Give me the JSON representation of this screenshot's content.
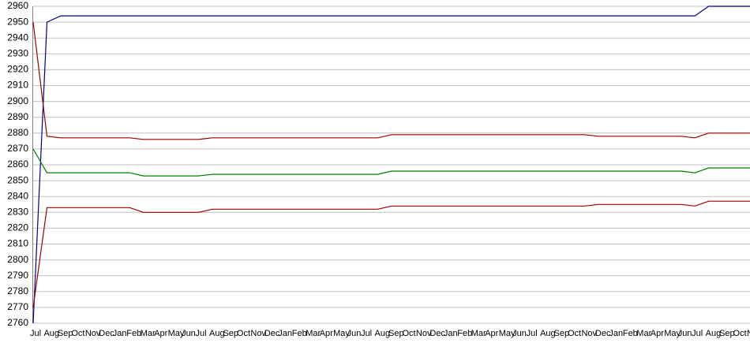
{
  "chart_data": {
    "type": "line",
    "categories": [
      "Jul",
      "Aug",
      "Sep",
      "Oct",
      "Nov",
      "Dec",
      "Jan",
      "Feb",
      "Mar",
      "Apr",
      "May",
      "Jun",
      "Jul",
      "Aug",
      "Sep",
      "Oct",
      "Nov",
      "Dec",
      "Jan",
      "Feb",
      "Mar",
      "Apr",
      "May",
      "Jun",
      "Jul",
      "Aug",
      "Sep",
      "Oct",
      "Nov",
      "Dec",
      "Jan",
      "Feb",
      "Mar",
      "Apr",
      "May",
      "Jun",
      "Jul",
      "Aug",
      "Sep",
      "Oct",
      "Nov",
      "Dec",
      "Jan",
      "Feb",
      "Mar",
      "Apr",
      "May",
      "Jun",
      "Jul",
      "Aug",
      "Sep",
      "Oct",
      "Nov"
    ],
    "series": [
      {
        "color": "#000080",
        "values": [
          2760,
          2950,
          2954,
          2954,
          2954,
          2954,
          2954,
          2954,
          2954,
          2954,
          2954,
          2954,
          2954,
          2954,
          2954,
          2954,
          2954,
          2954,
          2954,
          2954,
          2954,
          2954,
          2954,
          2954,
          2954,
          2954,
          2954,
          2954,
          2954,
          2954,
          2954,
          2954,
          2954,
          2954,
          2954,
          2954,
          2954,
          2954,
          2954,
          2954,
          2954,
          2954,
          2954,
          2954,
          2954,
          2954,
          2954,
          2954,
          2954,
          2960,
          2960,
          2960,
          2960
        ]
      },
      {
        "color": "#990000",
        "values": [
          2950,
          2878,
          2877,
          2877,
          2877,
          2877,
          2877,
          2877,
          2876,
          2876,
          2876,
          2876,
          2876,
          2877,
          2877,
          2877,
          2877,
          2877,
          2877,
          2877,
          2877,
          2877,
          2877,
          2877,
          2877,
          2877,
          2879,
          2879,
          2879,
          2879,
          2879,
          2879,
          2879,
          2879,
          2879,
          2879,
          2879,
          2879,
          2879,
          2879,
          2879,
          2878,
          2878,
          2878,
          2878,
          2878,
          2878,
          2878,
          2877,
          2880,
          2880,
          2880,
          2880
        ]
      },
      {
        "color": "#008000",
        "values": [
          2870,
          2855,
          2855,
          2855,
          2855,
          2855,
          2855,
          2855,
          2853,
          2853,
          2853,
          2853,
          2853,
          2854,
          2854,
          2854,
          2854,
          2854,
          2854,
          2854,
          2854,
          2854,
          2854,
          2854,
          2854,
          2854,
          2856,
          2856,
          2856,
          2856,
          2856,
          2856,
          2856,
          2856,
          2856,
          2856,
          2856,
          2856,
          2856,
          2856,
          2856,
          2856,
          2856,
          2856,
          2856,
          2856,
          2856,
          2856,
          2855,
          2858,
          2858,
          2858,
          2858
        ]
      },
      {
        "color": "#990000",
        "values": [
          2770,
          2833,
          2833,
          2833,
          2833,
          2833,
          2833,
          2833,
          2830,
          2830,
          2830,
          2830,
          2830,
          2832,
          2832,
          2832,
          2832,
          2832,
          2832,
          2832,
          2832,
          2832,
          2832,
          2832,
          2832,
          2832,
          2834,
          2834,
          2834,
          2834,
          2834,
          2834,
          2834,
          2834,
          2834,
          2834,
          2834,
          2834,
          2834,
          2834,
          2834,
          2835,
          2835,
          2835,
          2835,
          2835,
          2835,
          2835,
          2834,
          2837,
          2837,
          2837,
          2837
        ]
      }
    ],
    "ylim": [
      2760,
      2960
    ],
    "yticks": [
      2760,
      2770,
      2780,
      2790,
      2800,
      2810,
      2820,
      2830,
      2840,
      2850,
      2860,
      2870,
      2880,
      2890,
      2900,
      2910,
      2920,
      2930,
      2940,
      2950,
      2960
    ],
    "grid": true
  }
}
